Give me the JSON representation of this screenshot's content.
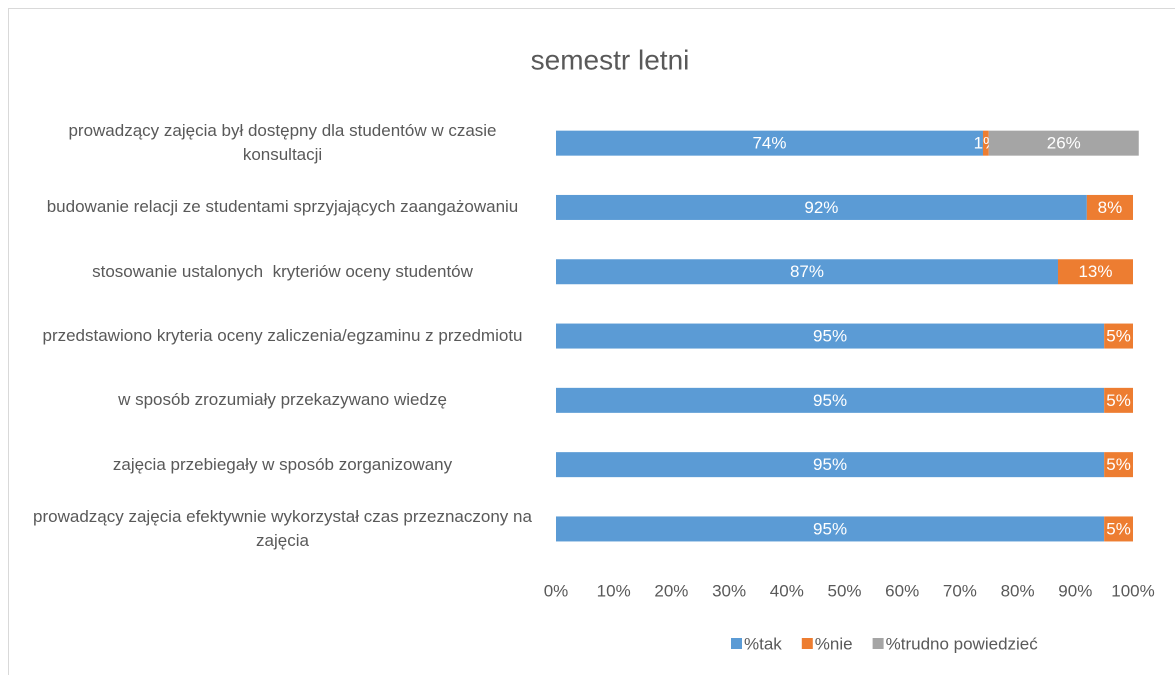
{
  "chart_data": {
    "type": "stacked_bar_horizontal_percent",
    "title": "semestr letni",
    "categories": [
      "prowadzący zajęcia był dostępny dla studentów w czasie konsultacji",
      "budowanie relacji ze studentami sprzyjających zaangażowaniu",
      "stosowanie ustalonych  kryteriów oceny studentów",
      "przedstawiono kryteria oceny zaliczenia/egzaminu z przedmiotu",
      "w sposób zrozumiały przekazywano wiedzę",
      "zajęcia przebiegały w sposób zorganizowany",
      "prowadzący zajęcia efektywnie wykorzystał czas przeznaczony na zajęcia"
    ],
    "series": [
      {
        "name": "%tak",
        "color": "#5b9bd5",
        "values": [
          74,
          92,
          87,
          95,
          95,
          95,
          95
        ],
        "value_labels": [
          "74%",
          "92%",
          "87%",
          "95%",
          "95%",
          "95%",
          "95%"
        ]
      },
      {
        "name": "%nie",
        "color": "#ed7d31",
        "values": [
          1,
          8,
          13,
          5,
          5,
          5,
          5
        ],
        "value_labels": [
          "1%",
          "8%",
          "13%",
          "5%",
          "5%",
          "5%",
          "5%"
        ]
      },
      {
        "name": "%trudno powiedzieć",
        "color": "#a5a5a5",
        "values": [
          26,
          null,
          null,
          null,
          null,
          null,
          null
        ],
        "value_labels": [
          "26%",
          null,
          null,
          null,
          null,
          null,
          null
        ]
      }
    ],
    "xlim": [
      0,
      100
    ],
    "xticks": [
      {
        "value": 0,
        "label": "0%"
      },
      {
        "value": 10,
        "label": "10%"
      },
      {
        "value": 20,
        "label": "20%"
      },
      {
        "value": 30,
        "label": "30%"
      },
      {
        "value": 40,
        "label": "40%"
      },
      {
        "value": 50,
        "label": "50%"
      },
      {
        "value": 60,
        "label": "60%"
      },
      {
        "value": 70,
        "label": "70%"
      },
      {
        "value": 80,
        "label": "80%"
      },
      {
        "value": 90,
        "label": "90%"
      },
      {
        "value": 100,
        "label": "100%"
      }
    ],
    "grid": false,
    "legend": "bottom"
  }
}
